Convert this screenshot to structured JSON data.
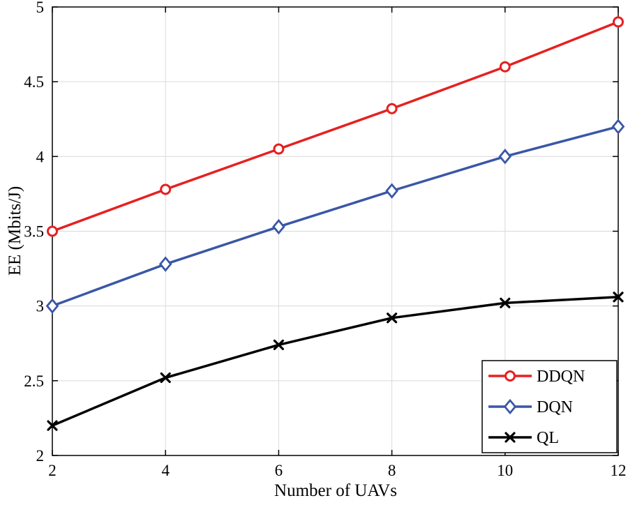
{
  "chart_data": {
    "type": "line",
    "title": "",
    "xlabel": "Number of UAVs",
    "ylabel": "EE (Mbits/J)",
    "x": [
      2,
      4,
      6,
      8,
      10,
      12
    ],
    "xlim": [
      2,
      12
    ],
    "ylim": [
      2,
      5
    ],
    "xticks": [
      2,
      4,
      6,
      8,
      10,
      12
    ],
    "yticks": [
      2,
      2.5,
      3,
      3.5,
      4,
      4.5,
      5
    ],
    "grid": true,
    "legend_position": "bottom-right",
    "series": [
      {
        "name": "DDQN",
        "color": "#e62020",
        "marker": "circle",
        "values": [
          3.5,
          3.78,
          4.05,
          4.32,
          4.6,
          4.9
        ]
      },
      {
        "name": "DQN",
        "color": "#3a57a6",
        "marker": "diamond",
        "values": [
          3.0,
          3.28,
          3.53,
          3.77,
          4.0,
          4.2
        ]
      },
      {
        "name": "QL",
        "color": "#000000",
        "marker": "x",
        "values": [
          2.2,
          2.52,
          2.74,
          2.92,
          3.02,
          3.06
        ]
      }
    ]
  },
  "colors": {
    "grid": "#dadada",
    "axis": "#000000",
    "background": "#ffffff"
  }
}
